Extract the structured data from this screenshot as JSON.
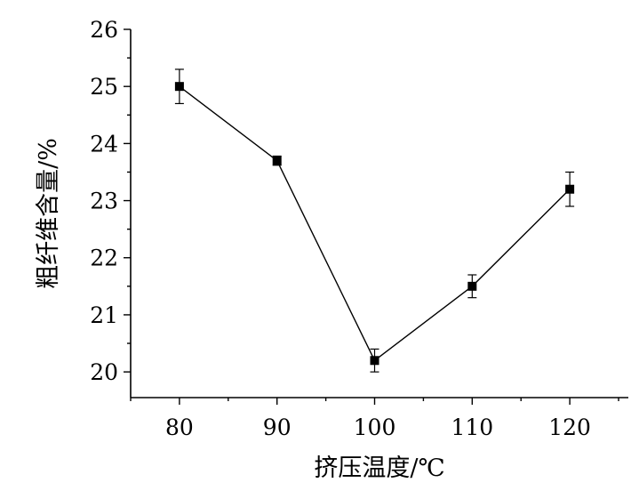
{
  "chart_data": {
    "type": "line",
    "xlabel": "挤压温度/℃",
    "ylabel": "粗纤维含量/%",
    "x": [
      80,
      90,
      100,
      110,
      120
    ],
    "series": [
      {
        "values": [
          25.0,
          23.7,
          20.2,
          21.5,
          23.2
        ],
        "errors": [
          0.3,
          0.08,
          0.2,
          0.2,
          0.3
        ]
      }
    ],
    "xlim": [
      75,
      126
    ],
    "ylim": [
      19.55,
      26
    ],
    "xticks": [
      80,
      90,
      100,
      110,
      120
    ],
    "yticks": [
      20,
      21,
      22,
      23,
      24,
      25,
      26
    ],
    "marker": "square",
    "grid": false,
    "legend": false
  }
}
